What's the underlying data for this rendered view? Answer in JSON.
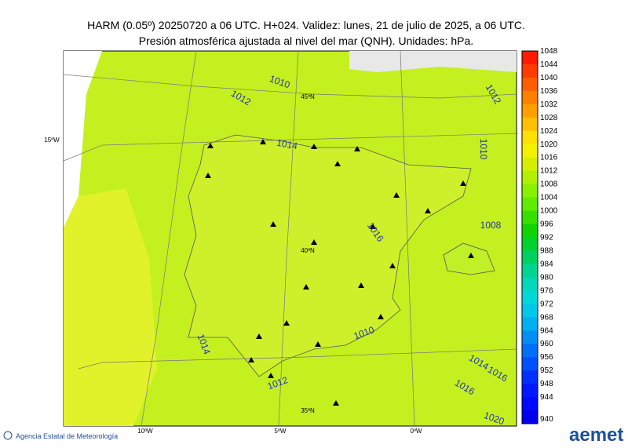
{
  "header": {
    "title": "HARM (0.05º) 20250720 a 06 UTC. H+024. Validez: lunes, 21 de julio de 2025, a 06 UTC.",
    "subtitle": "Presión atmosférica ajustada al nivel del mar (QNH). Unidades: hPa."
  },
  "colorbar": {
    "levels": [
      1048,
      1044,
      1040,
      1036,
      1032,
      1028,
      1024,
      1020,
      1016,
      1012,
      1008,
      1004,
      1000,
      996,
      992,
      988,
      984,
      980,
      976,
      972,
      968,
      964,
      960,
      956,
      952,
      948,
      944,
      940
    ],
    "colors": [
      "#ff1a00",
      "#ff3c00",
      "#ff5e00",
      "#ff8000",
      "#ffa000",
      "#ffc000",
      "#ffe000",
      "#f4f000",
      "#d4f000",
      "#b0f000",
      "#88f000",
      "#60ec00",
      "#38e000",
      "#10d400",
      "#00d030",
      "#00d060",
      "#00d490",
      "#00d8b8",
      "#00d8d8",
      "#00c8e8",
      "#00b0f0",
      "#0090f4",
      "#0070f8",
      "#0050fc",
      "#0030ff",
      "#0018ff",
      "#0008ff",
      "#0000f0"
    ]
  },
  "map": {
    "contour_labels": [
      "1010",
      "1012",
      "1014",
      "1016",
      "1008",
      "1010",
      "1012",
      "1014",
      "1010",
      "1012",
      "1016",
      "1014",
      "1016",
      "1020"
    ],
    "grid_labels": [
      "45ºN",
      "40ºN",
      "35ºN",
      "15ºW",
      "10ºW",
      "5ºW",
      "0ºW"
    ]
  },
  "footer": {
    "agency": "Agencia Estatal de Meteorología",
    "logo": "aemet"
  }
}
